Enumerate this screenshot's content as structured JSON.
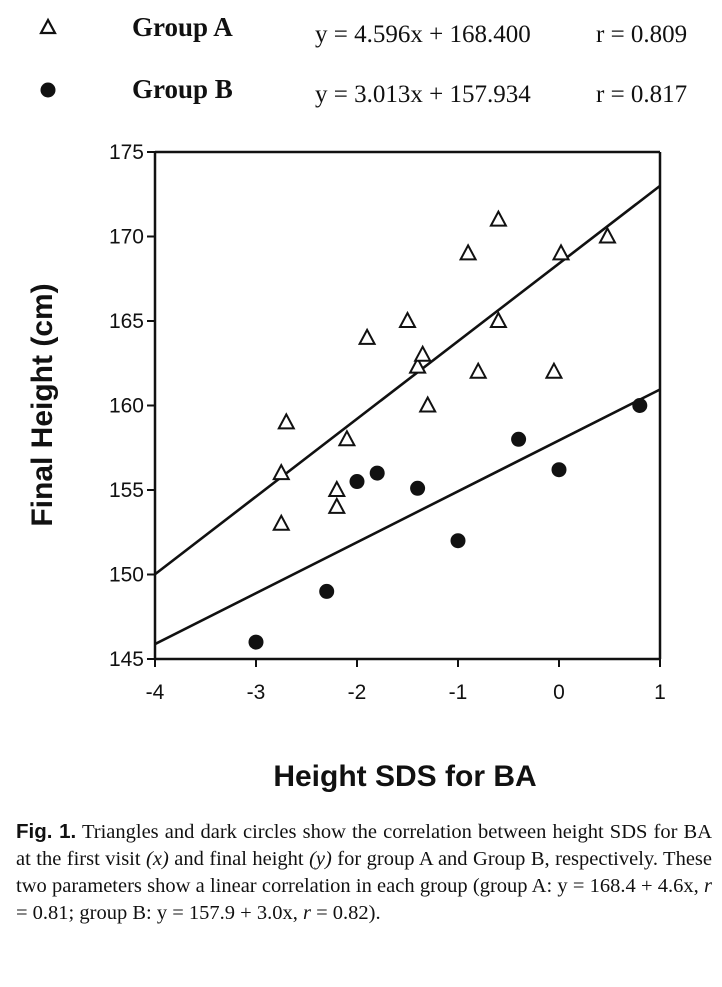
{
  "legend": [
    {
      "marker": "triangle",
      "label": "Group A",
      "equation": "y = 4.596x + 168.400",
      "r_text": "r = 0.809"
    },
    {
      "marker": "circle",
      "label": "Group B",
      "equation": "y = 3.013x + 157.934",
      "r_text": "r = 0.817"
    }
  ],
  "chart_data": {
    "type": "scatter",
    "title": "",
    "xlabel": "Height SDS for BA",
    "ylabel": "Final Height (cm)",
    "xlim": [
      -4,
      1
    ],
    "ylim": [
      145,
      175
    ],
    "xticks": [
      -4,
      -3,
      -2,
      -1,
      0,
      1
    ],
    "yticks": [
      145,
      150,
      155,
      160,
      165,
      170,
      175
    ],
    "grid": false,
    "legend_position": "top",
    "series": [
      {
        "name": "Group A",
        "marker": "open-triangle",
        "color": "#111111",
        "fit": {
          "slope": 4.596,
          "intercept": 168.4,
          "r": 0.809
        },
        "points": [
          [
            -2.75,
            156
          ],
          [
            -2.75,
            153
          ],
          [
            -2.7,
            159
          ],
          [
            -2.2,
            155
          ],
          [
            -2.2,
            154
          ],
          [
            -2.1,
            158
          ],
          [
            -1.9,
            164
          ],
          [
            -1.5,
            165
          ],
          [
            -1.4,
            162.3
          ],
          [
            -1.35,
            163
          ],
          [
            -1.3,
            160
          ],
          [
            -0.9,
            169
          ],
          [
            -0.8,
            162
          ],
          [
            -0.6,
            165
          ],
          [
            -0.6,
            171
          ],
          [
            -0.05,
            162
          ],
          [
            0.02,
            169
          ],
          [
            0.48,
            170
          ]
        ]
      },
      {
        "name": "Group B",
        "marker": "filled-circle",
        "color": "#111111",
        "fit": {
          "slope": 3.013,
          "intercept": 157.934,
          "r": 0.817
        },
        "points": [
          [
            -3.0,
            146
          ],
          [
            -2.3,
            149
          ],
          [
            -2.0,
            155.5
          ],
          [
            -1.8,
            156
          ],
          [
            -1.4,
            155.1
          ],
          [
            -1.0,
            152
          ],
          [
            -0.4,
            158
          ],
          [
            0.0,
            156.2
          ],
          [
            0.8,
            160
          ]
        ]
      }
    ]
  },
  "caption": {
    "fig_label": "Fig. 1.",
    "segments": [
      {
        "text": " Triangles and dark circles show the correlation between height SDS for BA at the first visit ",
        "italic": false
      },
      {
        "text": "(x)",
        "italic": true
      },
      {
        "text": " and final height ",
        "italic": false
      },
      {
        "text": "(y)",
        "italic": true
      },
      {
        "text": " for group A and Group B, respectively. These two parameters show a linear correlation in each group (group A: y = 168.4 + 4.6x, ",
        "italic": false
      },
      {
        "text": "r",
        "italic": true
      },
      {
        "text": " = 0.81; group B: y = 157.9 + 3.0x, ",
        "italic": false
      },
      {
        "text": "r",
        "italic": true
      },
      {
        "text": " = 0.82).",
        "italic": false
      }
    ]
  }
}
